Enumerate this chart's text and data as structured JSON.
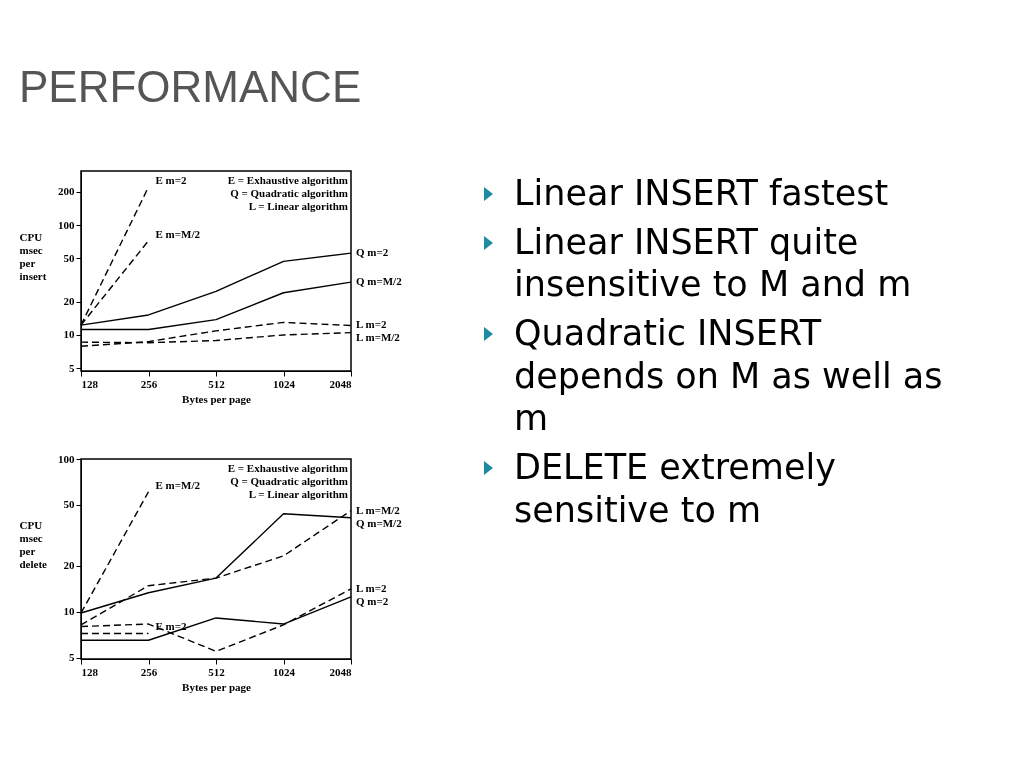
{
  "chart_data": [
    {
      "type": "line",
      "title": "PERFORMANCE",
      "xlabel": "Bytes per page",
      "ylabel": "CPU msec per insert",
      "log": "xy",
      "x": [
        128,
        256,
        512,
        1024,
        2048
      ],
      "xlim": [
        128,
        2048
      ],
      "xticks": [
        128,
        256,
        512,
        1024,
        2048
      ],
      "ylim": [
        4.7,
        310
      ],
      "yticks": [
        5,
        10,
        20,
        50,
        100,
        200
      ],
      "annotations": [
        "E = Exhaustive algorithm",
        "Q = Quadratic algorithm",
        "L = Linear algorithm"
      ],
      "series": [
        {
          "name": "E m=2",
          "color": "#000000",
          "line_style": "dashed",
          "values": [
            12.3,
            222,
            null,
            null,
            null
          ]
        },
        {
          "name": "E m=M/2",
          "color": "#000000",
          "line_style": "dashed",
          "values": [
            12.3,
            72,
            null,
            null,
            null
          ]
        },
        {
          "name": "Q m=2",
          "color": "#000000",
          "line_style": "solid",
          "values": [
            12.3,
            15.2,
            24.9,
            46.7,
            55.5
          ]
        },
        {
          "name": "Q m=M/2",
          "color": "#000000",
          "line_style": "solid",
          "values": [
            11.2,
            11.2,
            13.8,
            24.2,
            30.2
          ]
        },
        {
          "name": "L m=2",
          "color": "#000000",
          "line_style": "dashed",
          "values": [
            7.9,
            8.7,
            10.9,
            13.0,
            12.2
          ]
        },
        {
          "name": "L m=M/2",
          "color": "#000000",
          "line_style": "dashed",
          "values": [
            8.6,
            8.5,
            8.9,
            10.0,
            10.5
          ]
        }
      ]
    },
    {
      "type": "line",
      "xlabel": "Bytes per page",
      "ylabel": "CPU msec per delete",
      "log": "xy",
      "x": [
        128,
        256,
        512,
        1024,
        2048
      ],
      "xlim": [
        128,
        2048
      ],
      "xticks": [
        128,
        256,
        512,
        1024,
        2048
      ],
      "ylim": [
        4.9,
        100
      ],
      "yticks": [
        5,
        10,
        20,
        50,
        100
      ],
      "annotations": [
        "E = Exhaustive algorithm",
        "Q = Quadratic algorithm",
        "L = Linear algorithm"
      ],
      "series": [
        {
          "name": "E m=M/2",
          "color": "#000000",
          "line_style": "dashed",
          "values": [
            9.8,
            61,
            null,
            null,
            null
          ]
        },
        {
          "name": "E m=2",
          "color": "#000000",
          "line_style": "dashed",
          "values": [
            7.2,
            7.2,
            null,
            null,
            null
          ]
        },
        {
          "name": "L m=M/2",
          "color": "#000000",
          "line_style": "dashed",
          "values": [
            8.2,
            14.8,
            16.6,
            23.2,
            45.9
          ]
        },
        {
          "name": "Q m=M/2",
          "color": "#000000",
          "line_style": "solid",
          "values": [
            9.8,
            13.3,
            16.6,
            43.8,
            41.2
          ]
        },
        {
          "name": "L m=2",
          "color": "#000000",
          "line_style": "dashed",
          "values": [
            8.0,
            8.3,
            5.5,
            8.2,
            14.1
          ]
        },
        {
          "name": "Q m=2",
          "color": "#000000",
          "line_style": "solid",
          "values": [
            6.5,
            6.5,
            9.1,
            8.3,
            12.5
          ]
        }
      ]
    },
    {
      "type": "other",
      "annotations": [
        "Linear INSERT fastest",
        "Linear INSERT quite insensitive to M and m",
        "Quadratic INSERT depends on M as well as m",
        "DELETE extremely sensitive to m"
      ]
    }
  ]
}
